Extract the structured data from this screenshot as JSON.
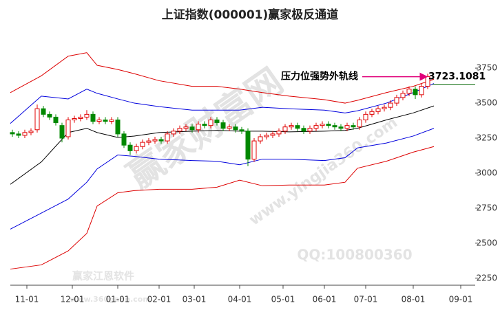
{
  "chart_data": {
    "type": "candlestick",
    "title": "上证指数(000001)赢家极反通道",
    "up_color": "#e00000",
    "down_color": "#008800",
    "xlim": [
      0,
      225
    ],
    "ylim": [
      2200,
      4040
    ],
    "xticks": [
      {
        "value": 8,
        "label": "11-01"
      },
      {
        "value": 30,
        "label": "12-01"
      },
      {
        "value": 52,
        "label": "01-01"
      },
      {
        "value": 72,
        "label": "02-01"
      },
      {
        "value": 89,
        "label": "03-01"
      },
      {
        "value": 111,
        "label": "04-01"
      },
      {
        "value": 132,
        "label": "05-01"
      },
      {
        "value": 152,
        "label": "06-01"
      },
      {
        "value": 172,
        "label": "07-01"
      },
      {
        "value": 195,
        "label": "08-01"
      },
      {
        "value": 218,
        "label": "09-01"
      }
    ],
    "yticks": [
      2250,
      2500,
      2750,
      3000,
      3250,
      3500,
      3750
    ],
    "x": [
      1,
      4,
      7,
      10,
      13,
      16,
      19,
      22,
      25,
      28,
      31,
      34,
      37,
      40,
      43,
      46,
      49,
      52,
      55,
      58,
      61,
      64,
      67,
      70,
      73,
      76,
      79,
      82,
      85,
      88,
      91,
      94,
      97,
      100,
      103,
      106,
      109,
      112,
      115,
      118,
      121,
      124,
      127,
      130,
      133,
      136,
      139,
      142,
      145,
      148,
      151,
      154,
      157,
      160,
      163,
      166,
      169,
      172,
      175,
      178,
      181,
      184,
      187,
      190,
      193,
      196,
      199,
      202
    ],
    "open": [
      3290,
      3280,
      3270,
      3290,
      3310,
      3460,
      3420,
      3400,
      3340,
      3260,
      3380,
      3390,
      3400,
      3420,
      3370,
      3380,
      3370,
      3380,
      3280,
      3200,
      3160,
      3190,
      3220,
      3230,
      3240,
      3230,
      3280,
      3300,
      3320,
      3330,
      3310,
      3350,
      3340,
      3380,
      3360,
      3320,
      3330,
      3310,
      3300,
      3100,
      3230,
      3260,
      3270,
      3280,
      3300,
      3330,
      3340,
      3320,
      3300,
      3320,
      3340,
      3350,
      3340,
      3330,
      3320,
      3340,
      3330,
      3380,
      3420,
      3440,
      3460,
      3470,
      3500,
      3540,
      3570,
      3600,
      3560,
      3620
    ],
    "high": [
      3310,
      3300,
      3310,
      3320,
      3490,
      3480,
      3440,
      3420,
      3360,
      3400,
      3410,
      3420,
      3450,
      3440,
      3400,
      3400,
      3400,
      3400,
      3300,
      3220,
      3210,
      3240,
      3250,
      3260,
      3260,
      3300,
      3320,
      3340,
      3350,
      3350,
      3370,
      3370,
      3400,
      3400,
      3380,
      3350,
      3350,
      3330,
      3320,
      3250,
      3280,
      3290,
      3300,
      3320,
      3350,
      3360,
      3360,
      3340,
      3340,
      3360,
      3370,
      3370,
      3360,
      3350,
      3360,
      3360,
      3400,
      3440,
      3460,
      3480,
      3490,
      3520,
      3560,
      3590,
      3620,
      3620,
      3640,
      3710
    ],
    "low": [
      3260,
      3250,
      3250,
      3270,
      3290,
      3400,
      3380,
      3340,
      3220,
      3240,
      3360,
      3370,
      3380,
      3350,
      3350,
      3350,
      3350,
      3260,
      3180,
      3130,
      3140,
      3170,
      3200,
      3210,
      3210,
      3210,
      3260,
      3280,
      3300,
      3290,
      3290,
      3320,
      3320,
      3340,
      3300,
      3300,
      3290,
      3280,
      3050,
      3080,
      3210,
      3240,
      3250,
      3260,
      3280,
      3310,
      3300,
      3280,
      3280,
      3300,
      3320,
      3320,
      3310,
      3300,
      3300,
      3310,
      3310,
      3360,
      3400,
      3420,
      3440,
      3450,
      3480,
      3520,
      3550,
      3530,
      3540,
      3600
    ],
    "close": [
      3280,
      3270,
      3290,
      3300,
      3460,
      3420,
      3400,
      3360,
      3250,
      3380,
      3390,
      3400,
      3420,
      3370,
      3380,
      3370,
      3380,
      3280,
      3200,
      3160,
      3190,
      3220,
      3230,
      3240,
      3230,
      3280,
      3300,
      3320,
      3330,
      3310,
      3350,
      3340,
      3380,
      3360,
      3320,
      3330,
      3310,
      3300,
      3100,
      3230,
      3260,
      3270,
      3280,
      3300,
      3330,
      3340,
      3320,
      3300,
      3320,
      3340,
      3350,
      3340,
      3330,
      3320,
      3340,
      3330,
      3380,
      3420,
      3440,
      3460,
      3470,
      3500,
      3540,
      3570,
      3600,
      3560,
      3620,
      3690
    ],
    "band_x": [
      0,
      15,
      28,
      37,
      42,
      52,
      60,
      72,
      88,
      100,
      111,
      122,
      135,
      152,
      162,
      168,
      182,
      195,
      205
    ],
    "bands": [
      {
        "color": "#000000",
        "values": [
          2920,
          3080,
          3290,
          3320,
          3290,
          3255,
          3265,
          3290,
          3300,
          3305,
          3300,
          3300,
          3295,
          3300,
          3305,
          3320,
          3380,
          3430,
          3480
        ]
      },
      {
        "color": "#0000dd",
        "values": [
          3355,
          3550,
          3530,
          3600,
          3570,
          3530,
          3500,
          3475,
          3450,
          3450,
          3450,
          3470,
          3460,
          3450,
          3430,
          3445,
          3500,
          3575,
          3640
        ]
      },
      {
        "color": "#0000dd",
        "values": [
          2600,
          2715,
          2815,
          2935,
          3030,
          3130,
          3120,
          3100,
          3090,
          3085,
          3060,
          3100,
          3100,
          3090,
          3110,
          3180,
          3215,
          3265,
          3320
        ]
      },
      {
        "color": "#dd0000",
        "values": [
          3575,
          3695,
          3835,
          3860,
          3770,
          3740,
          3710,
          3660,
          3620,
          3620,
          3600,
          3575,
          3550,
          3525,
          3500,
          3520,
          3575,
          3620,
          3670
        ]
      },
      {
        "color": "#dd0000",
        "values": [
          2315,
          2345,
          2445,
          2570,
          2765,
          2860,
          2875,
          2885,
          2885,
          2900,
          2950,
          2910,
          2915,
          2915,
          2935,
          3035,
          3085,
          3150,
          3190
        ]
      }
    ],
    "annotation": {
      "text": "压力位强势外轨线",
      "value": 3723.1081,
      "color": "#e0007a"
    },
    "watermarks": [
      "赢家财富网",
      "www.yingjia360.com",
      "QQ:100800360",
      "赢家江恩软件",
      "www.360gann.com"
    ]
  }
}
